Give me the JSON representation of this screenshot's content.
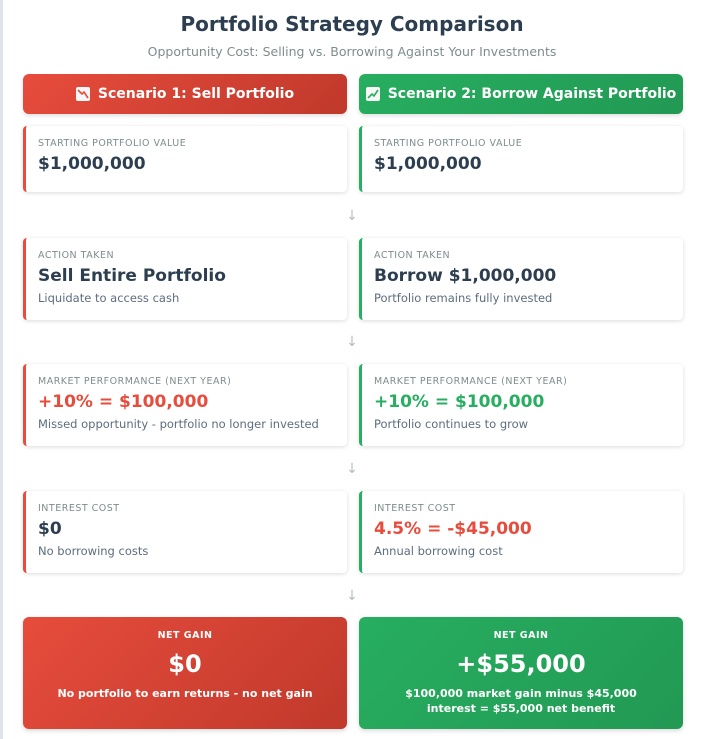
{
  "header": {
    "title": "Portfolio Strategy Comparison",
    "subtitle": "Opportunity Cost: Selling vs. Borrowing Against Your Investments"
  },
  "flow_arrow": "↓",
  "scenario1": {
    "title": "Scenario 1: Sell Portfolio",
    "icon": "chart-decreasing-icon",
    "color": "#e74c3c",
    "cards": [
      {
        "label": "Starting Portfolio Value",
        "value": "$1,000,000",
        "desc": ""
      },
      {
        "label": "Action Taken",
        "value": "Sell Entire Portfolio",
        "desc": "Liquidate to access cash"
      },
      {
        "label": "Market Performance (Next Year)",
        "value": "+10% = $100,000",
        "desc": "Missed opportunity - portfolio no longer invested"
      },
      {
        "label": "Interest Cost",
        "value": "$0",
        "desc": "No borrowing costs"
      }
    ],
    "result": {
      "label": "NET GAIN",
      "value": "$0",
      "desc": "No portfolio to earn returns - no net gain"
    }
  },
  "scenario2": {
    "title": "Scenario 2: Borrow Against Portfolio",
    "icon": "chart-increasing-icon",
    "color": "#27ae60",
    "cards": [
      {
        "label": "Starting Portfolio Value",
        "value": "$1,000,000",
        "desc": ""
      },
      {
        "label": "Action Taken",
        "value": "Borrow $1,000,000",
        "desc": "Portfolio remains fully invested"
      },
      {
        "label": "Market Performance (Next Year)",
        "value": "+10% = $100,000",
        "desc": "Portfolio continues to grow"
      },
      {
        "label": "Interest Cost",
        "value": "4.5% = -$45,000",
        "desc": "Annual borrowing cost"
      }
    ],
    "result": {
      "label": "NET GAIN",
      "value": "+$55,000",
      "desc": "$100,000 market gain minus $45,000 interest = $55,000 net benefit"
    }
  }
}
